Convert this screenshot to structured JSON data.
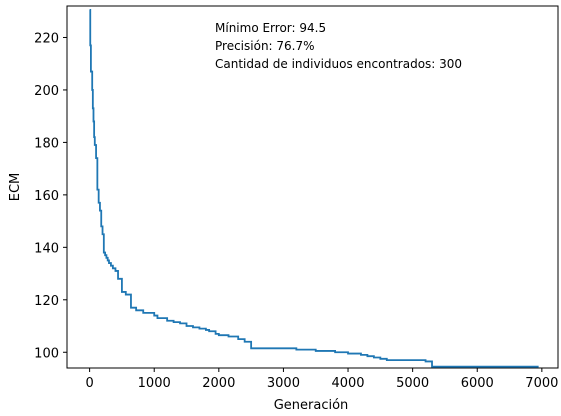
{
  "chart_data": {
    "type": "line",
    "title": "",
    "xlabel": "Generación",
    "ylabel": "ECM",
    "xlim": [
      -350,
      7250
    ],
    "ylim": [
      94,
      232
    ],
    "x_ticks": [
      0,
      1000,
      2000,
      3000,
      4000,
      5000,
      6000,
      7000
    ],
    "y_ticks": [
      100,
      120,
      140,
      160,
      180,
      200,
      220
    ],
    "grid": false,
    "legend": "none",
    "line_color": "#1f77b4",
    "annotations": [
      "Mínimo Error:  94.5",
      "Precisión: 76.7%",
      "Cantidad de individuos encontrados: 300"
    ],
    "series": [
      {
        "x": [
          0,
          10,
          20,
          30,
          40,
          50,
          60,
          70,
          80,
          100,
          120,
          140,
          160,
          180,
          200,
          220,
          240,
          260,
          280,
          300,
          330,
          360,
          400,
          440,
          500,
          560,
          640,
          720,
          830,
          1000,
          1050,
          1200,
          1300,
          1400,
          1500,
          1600,
          1700,
          1800,
          1850,
          1950,
          2000,
          2150,
          2300,
          2400,
          2500,
          2800,
          3000,
          3200,
          3500,
          3800,
          4000,
          4200,
          4300,
          4400,
          4500,
          4600,
          4700,
          5000,
          5200,
          5300,
          5500,
          6000,
          6500,
          6950
        ],
        "y": [
          230.5,
          217,
          207,
          207,
          200,
          193,
          188,
          182,
          179,
          174,
          162,
          157,
          154,
          148,
          145,
          138,
          137,
          136,
          135,
          134,
          133,
          132,
          131,
          128,
          123,
          122,
          117,
          116,
          115,
          114,
          113,
          112,
          111.5,
          111,
          110,
          109.5,
          109,
          108.5,
          108,
          107,
          106.5,
          106,
          105,
          104,
          101.5,
          101.5,
          101.5,
          101,
          100.5,
          100,
          99.5,
          99,
          98.5,
          98,
          97.5,
          97,
          97,
          97,
          96.5,
          94.5,
          94.5,
          94.5,
          94.5,
          94.5
        ]
      }
    ]
  }
}
